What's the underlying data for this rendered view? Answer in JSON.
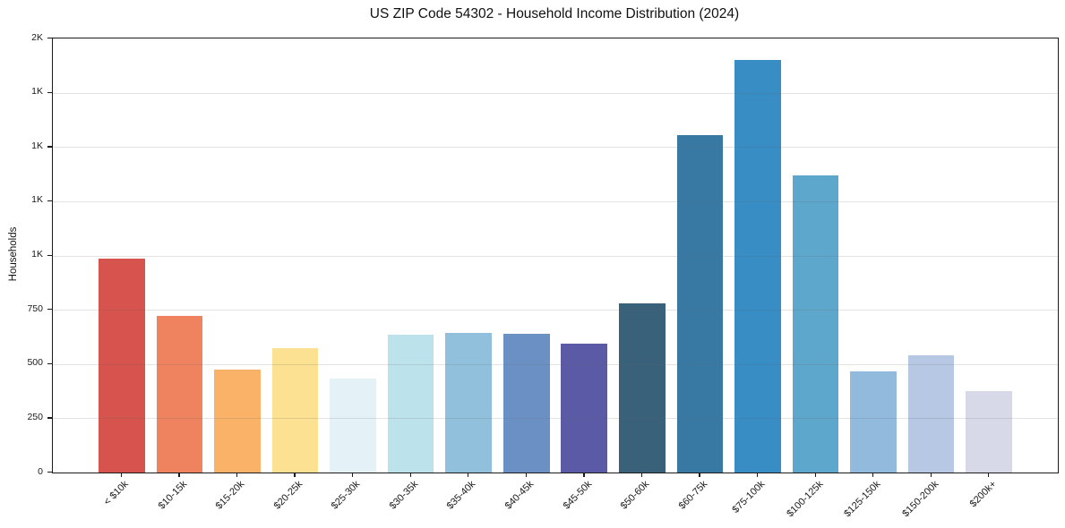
{
  "chart_data": {
    "type": "bar",
    "title": "US ZIP Code 54302 - Household Income Distribution (2024)",
    "xlabel": "",
    "ylabel": "Households",
    "categories": [
      "< $10k",
      "$10-15k",
      "$15-20k",
      "$20-25k",
      "$25-30k",
      "$30-35k",
      "$35-40k",
      "$40-45k",
      "$45-50k",
      "$50-60k",
      "$60-75k",
      "$75-100k",
      "$100-125k",
      "$125-150k",
      "$150-200k",
      "$200k+"
    ],
    "values": [
      985,
      720,
      475,
      575,
      435,
      635,
      645,
      640,
      595,
      780,
      1555,
      1900,
      1370,
      465,
      540,
      375
    ],
    "bar_colors": [
      "#d6534e",
      "#f0835f",
      "#fab269",
      "#fde192",
      "#e4f1f7",
      "#bce2ec",
      "#90c0db",
      "#6b90c4",
      "#5b5aa7",
      "#3a617a",
      "#3879a4",
      "#388dc5",
      "#5ea7cc",
      "#92badd",
      "#b7c8e4",
      "#d8d9e8"
    ],
    "ylim": [
      0,
      2000
    ],
    "yticks": [
      {
        "value": 0,
        "label": "0"
      },
      {
        "value": 250,
        "label": "250"
      },
      {
        "value": 500,
        "label": "500"
      },
      {
        "value": 750,
        "label": "750"
      },
      {
        "value": 1000,
        "label": "1K"
      },
      {
        "value": 1250,
        "label": "1K"
      },
      {
        "value": 1500,
        "label": "1K"
      },
      {
        "value": 1750,
        "label": "1K"
      },
      {
        "value": 2000,
        "label": "2K"
      }
    ],
    "grid": "horizontal, drawn faintly over bars",
    "legend": "none"
  }
}
